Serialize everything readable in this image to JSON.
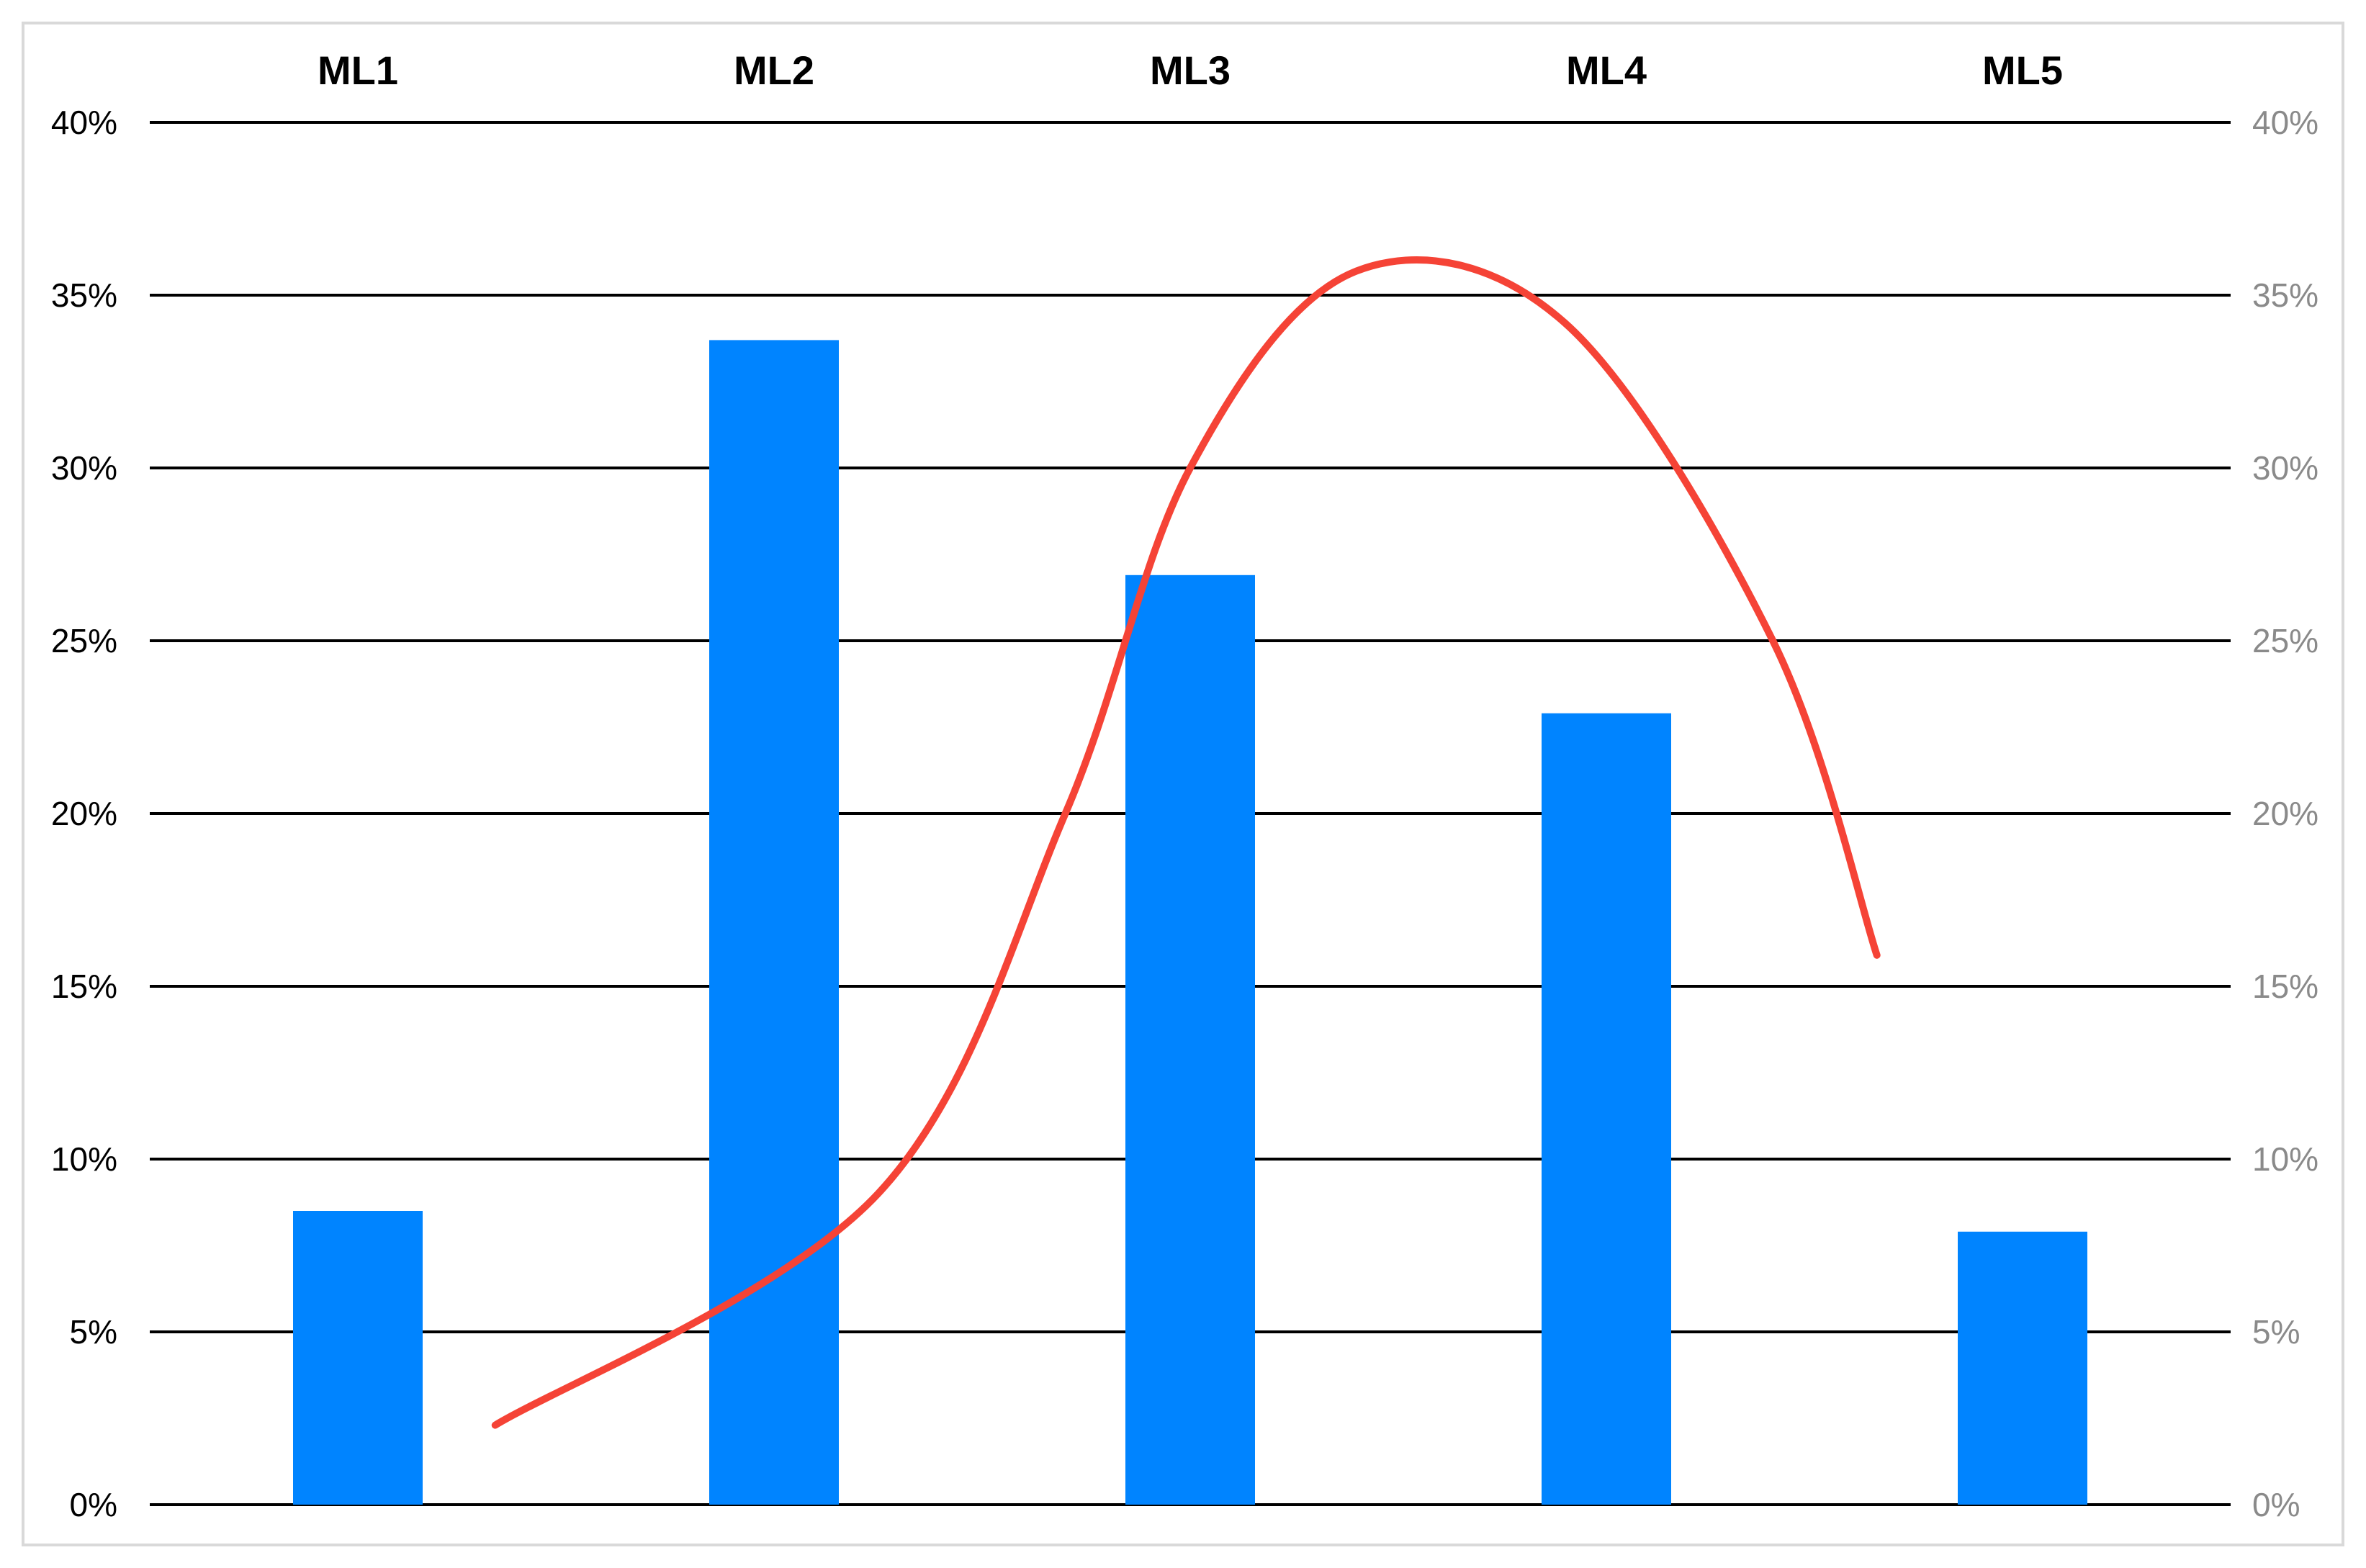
{
  "chart_data": {
    "type": "bar",
    "title": "",
    "xlabel": "",
    "ylabel": "",
    "categories": [
      "ML1",
      "ML2",
      "ML3",
      "ML4",
      "ML5"
    ],
    "ylim": [
      0,
      0.4
    ],
    "y_ticks": [
      "0%",
      "5%",
      "10%",
      "15%",
      "20%",
      "25%",
      "30%",
      "35%",
      "40%"
    ],
    "y2_ticks": [
      "0%",
      "5%",
      "10%",
      "15%",
      "20%",
      "25%",
      "30%",
      "35%",
      "40%"
    ],
    "grid": true,
    "legend": "none",
    "series": [
      {
        "type": "bar",
        "values": [
          0.085,
          0.337,
          0.269,
          0.229,
          0.079
        ],
        "color": "#0084ff"
      },
      {
        "type": "line",
        "smooth": true,
        "axis": "secondary",
        "color": "#f54336",
        "x": [
          0.33,
          1.25,
          1.7,
          2.0,
          2.4,
          2.9,
          3.4,
          3.65
        ],
        "values": [
          0.023,
          0.09,
          0.2,
          0.3,
          0.357,
          0.342,
          0.25,
          0.159
        ]
      }
    ]
  }
}
